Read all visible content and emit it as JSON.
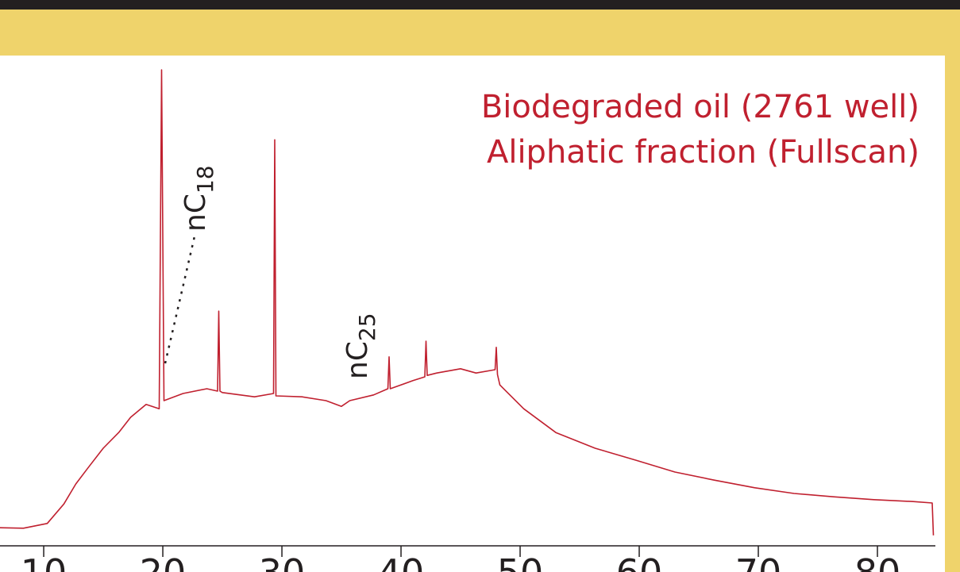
{
  "chart_data": {
    "type": "line",
    "title": [
      "Biodegraded oil (2761 well)",
      "Aliphatic fraction (Fullscan)"
    ],
    "color": "#c0202f",
    "x": [
      6.33,
      8.3,
      10.3,
      11.7,
      12.7,
      13.7,
      15,
      16.3,
      17.3,
      18.6,
      19.7,
      19.9,
      20.1,
      21.7,
      23.7,
      24.6,
      24.7,
      24.8,
      25,
      27.7,
      29.3,
      29.4,
      29.5,
      31.7,
      33.7,
      35,
      35.7,
      37.7,
      38.9,
      39,
      39.1,
      41,
      42,
      42.1,
      42.2,
      43,
      45,
      46.3,
      47.9,
      48,
      48.1,
      48.3,
      50.3,
      53,
      56.3,
      59.7,
      63,
      66.3,
      69.7,
      73,
      76.3,
      79.7,
      83,
      84.6,
      84.7
    ],
    "values": [
      3.8,
      3.7,
      4.7,
      8.8,
      13,
      16.3,
      20.5,
      23.8,
      27,
      29.7,
      28.8,
      100,
      30.5,
      32,
      33,
      32.5,
      49.3,
      32.5,
      32.2,
      31.3,
      32,
      85.3,
      31.5,
      31.3,
      30.5,
      29.3,
      30.5,
      31.7,
      33,
      39.7,
      33,
      34.7,
      35.5,
      43,
      35.8,
      36.3,
      37.2,
      36.3,
      37,
      41.7,
      36,
      33.8,
      28.8,
      23.8,
      20.5,
      18,
      15.5,
      13.8,
      12.2,
      11,
      10.3,
      9.7,
      9.3,
      9,
      2.2
    ],
    "xlim": [
      6.33,
      84.7
    ],
    "ylim": [
      0,
      100
    ],
    "xticks": [
      10,
      20,
      30,
      40,
      50,
      60,
      70,
      80
    ],
    "annotations": [
      {
        "text": "nC",
        "sub": "18"
      },
      {
        "text": "nC",
        "sub": "25"
      }
    ]
  }
}
